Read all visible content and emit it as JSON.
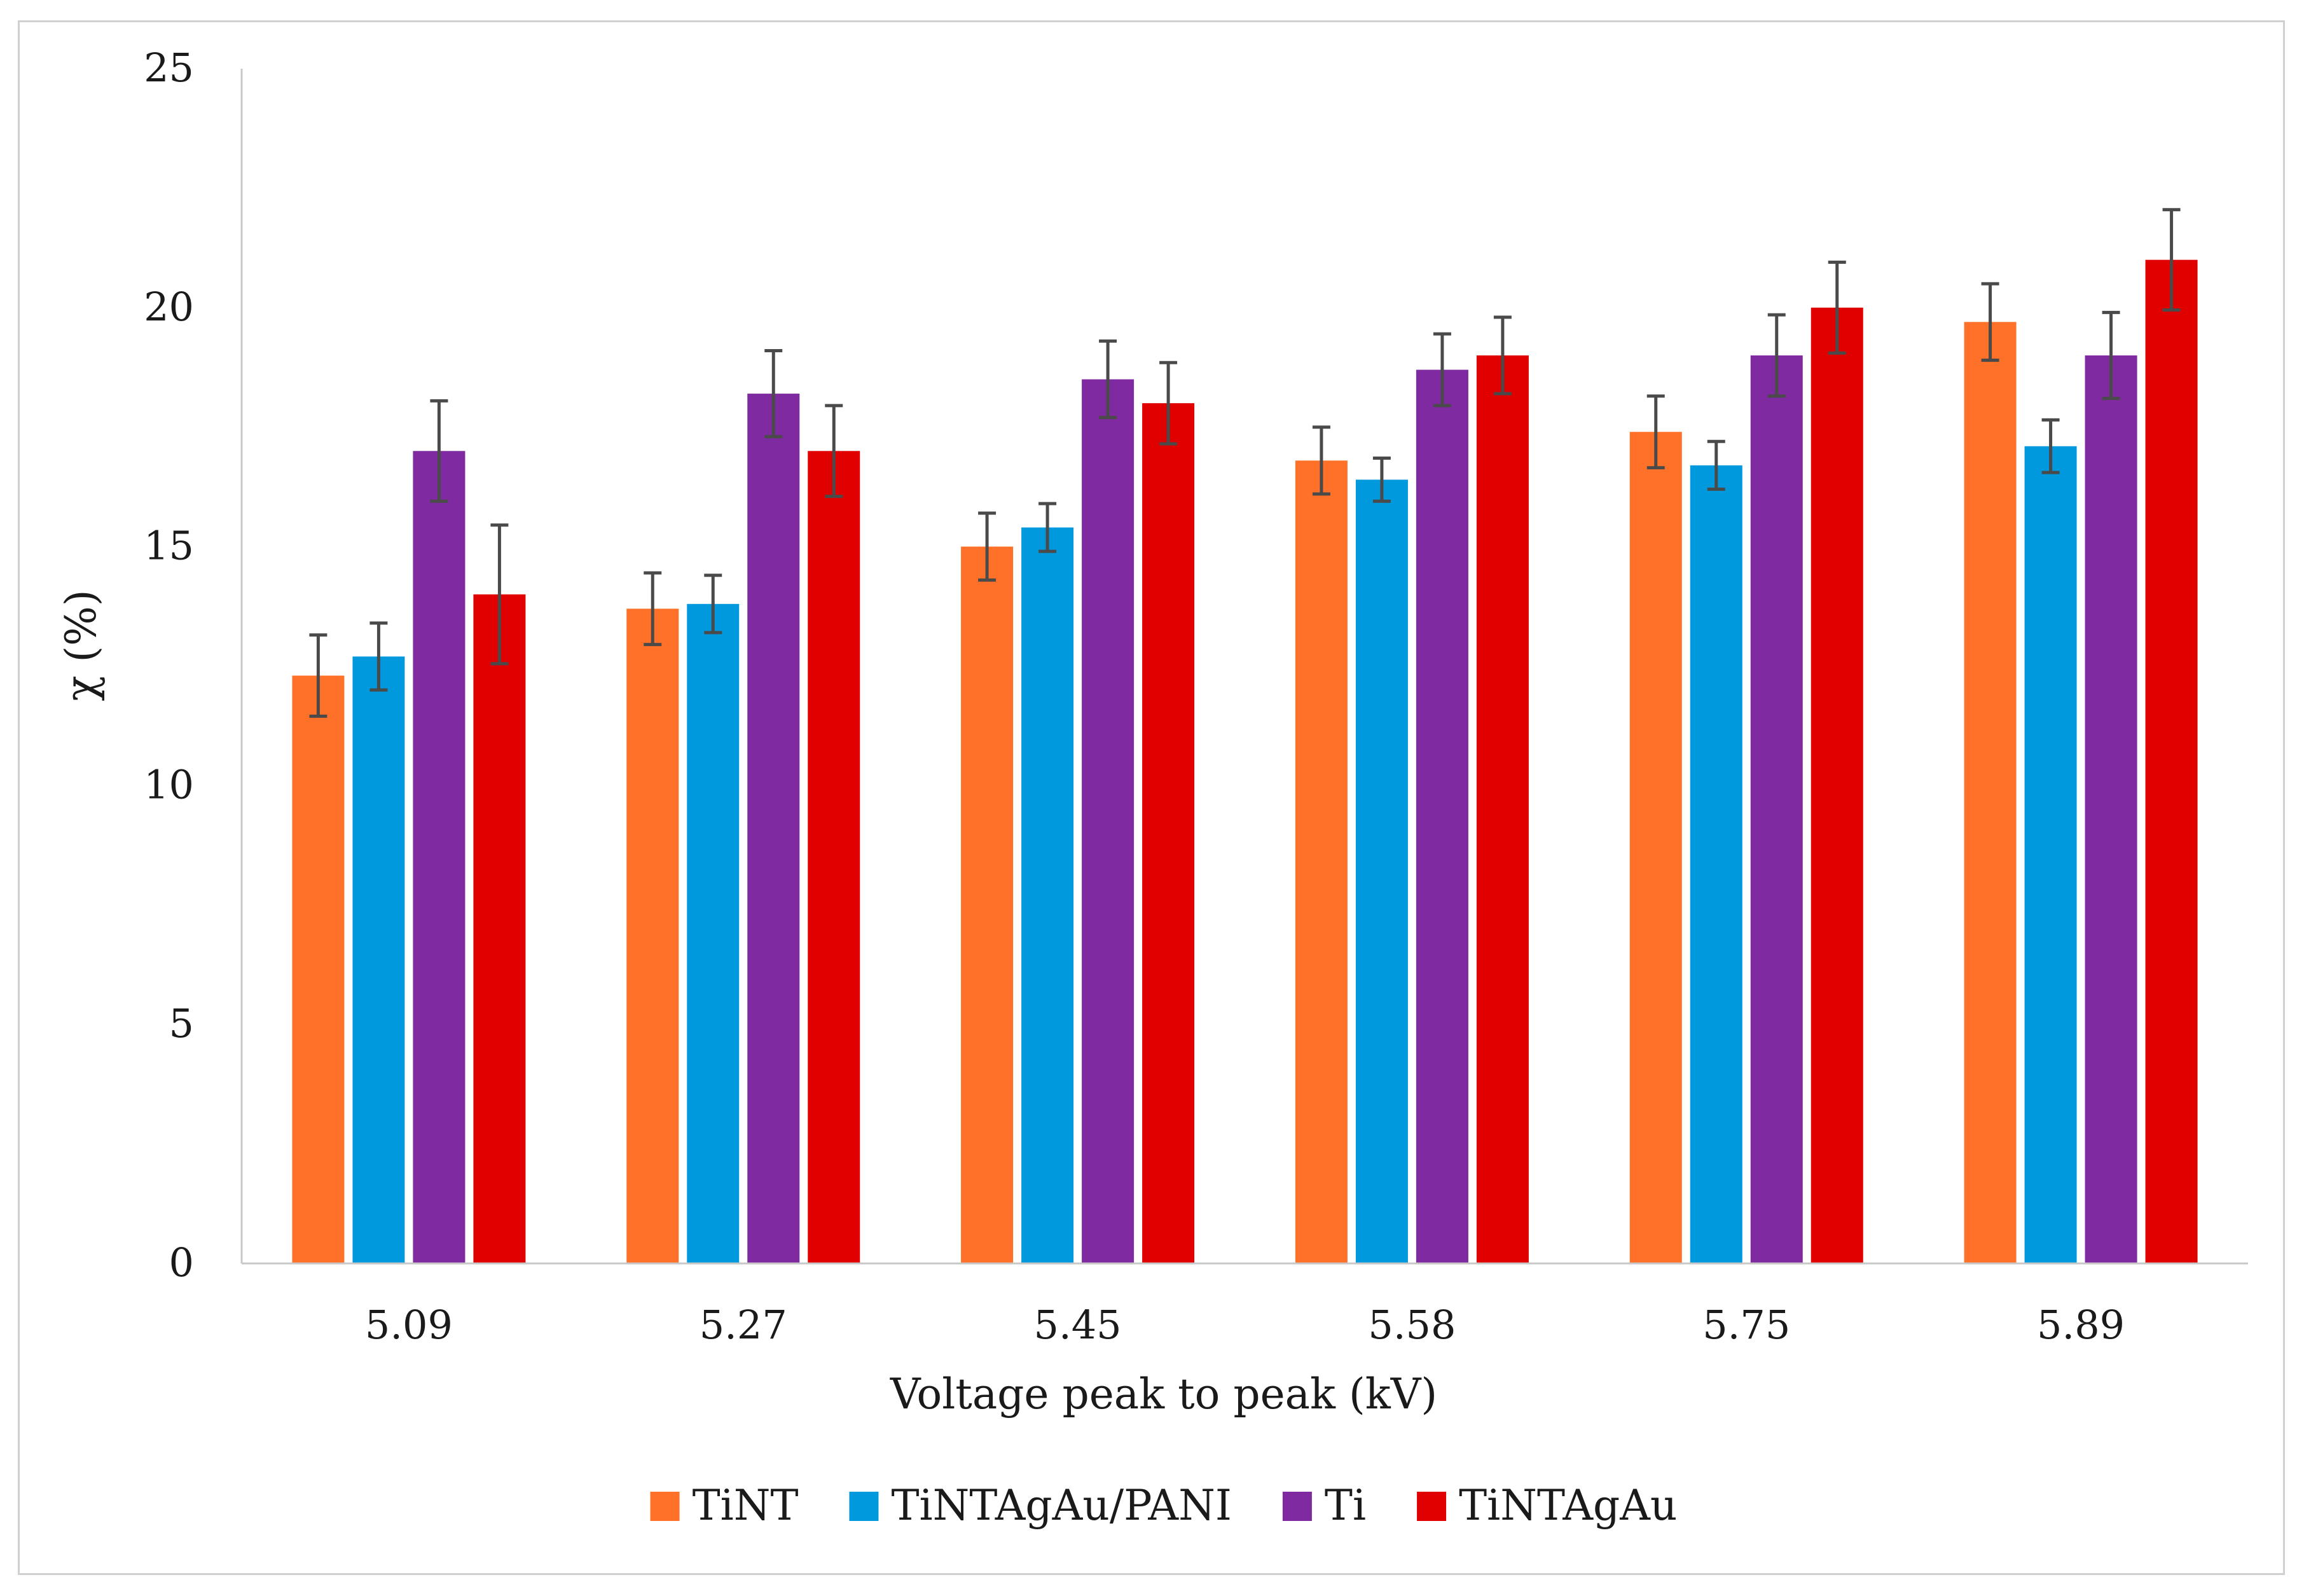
{
  "chart_data": {
    "type": "bar",
    "title": "",
    "xlabel": "Voltage peak to peak (kV)",
    "ylabel": "χ (%)",
    "ylim": [
      0,
      25
    ],
    "yticks": [
      "0",
      "5",
      "10",
      "15",
      "20",
      "25"
    ],
    "grid": false,
    "legend_position": "bottom",
    "error_bars": true,
    "categories": [
      "5.09",
      "5.27",
      "5.45",
      "5.58",
      "5.75",
      "5.89"
    ],
    "series": [
      {
        "name": "TiNT",
        "color": "#FF7128",
        "values": [
          12.3,
          13.7,
          15.0,
          16.8,
          17.4,
          19.7
        ],
        "errors": [
          0.85,
          0.75,
          0.7,
          0.7,
          0.75,
          0.8
        ]
      },
      {
        "name": "TiNTAgAu/PANI",
        "color": "#0099DD",
        "values": [
          12.7,
          13.8,
          15.4,
          16.4,
          16.7,
          17.1
        ],
        "errors": [
          0.7,
          0.6,
          0.5,
          0.45,
          0.5,
          0.55
        ]
      },
      {
        "name": "Ti",
        "color": "#7F2AA0",
        "values": [
          17.0,
          18.2,
          18.5,
          18.7,
          19.0,
          19.0
        ],
        "errors": [
          1.05,
          0.9,
          0.8,
          0.75,
          0.85,
          0.9
        ]
      },
      {
        "name": "TiNTAgAu",
        "color": "#E00000",
        "values": [
          14.0,
          17.0,
          18.0,
          19.0,
          20.0,
          21.0
        ],
        "errors": [
          1.45,
          0.95,
          0.85,
          0.8,
          0.95,
          1.05
        ]
      }
    ],
    "error_bar_color": "#4a4a4a",
    "axis_color": "#c8c8c8"
  }
}
